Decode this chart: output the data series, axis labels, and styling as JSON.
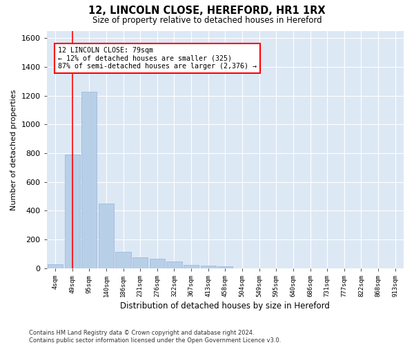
{
  "title1": "12, LINCOLN CLOSE, HEREFORD, HR1 1RX",
  "title2": "Size of property relative to detached houses in Hereford",
  "xlabel": "Distribution of detached houses by size in Hereford",
  "ylabel": "Number of detached properties",
  "bar_color": "#b8cfe8",
  "bar_edge_color": "#94b4d8",
  "background_color": "#dde8f5",
  "categories": [
    "4sqm",
    "49sqm",
    "95sqm",
    "140sqm",
    "186sqm",
    "231sqm",
    "276sqm",
    "322sqm",
    "367sqm",
    "413sqm",
    "458sqm",
    "504sqm",
    "549sqm",
    "595sqm",
    "640sqm",
    "686sqm",
    "731sqm",
    "777sqm",
    "822sqm",
    "868sqm",
    "913sqm"
  ],
  "values": [
    30,
    790,
    1230,
    450,
    112,
    78,
    65,
    45,
    25,
    18,
    15,
    0,
    0,
    0,
    0,
    0,
    0,
    0,
    0,
    0,
    0
  ],
  "ylim": [
    0,
    1650
  ],
  "yticks": [
    0,
    200,
    400,
    600,
    800,
    1000,
    1200,
    1400,
    1600
  ],
  "property_line_x": 1,
  "annotation_text": "12 LINCOLN CLOSE: 79sqm\n← 12% of detached houses are smaller (325)\n87% of semi-detached houses are larger (2,376) →",
  "footnote": "Contains HM Land Registry data © Crown copyright and database right 2024.\nContains public sector information licensed under the Open Government Licence v3.0."
}
